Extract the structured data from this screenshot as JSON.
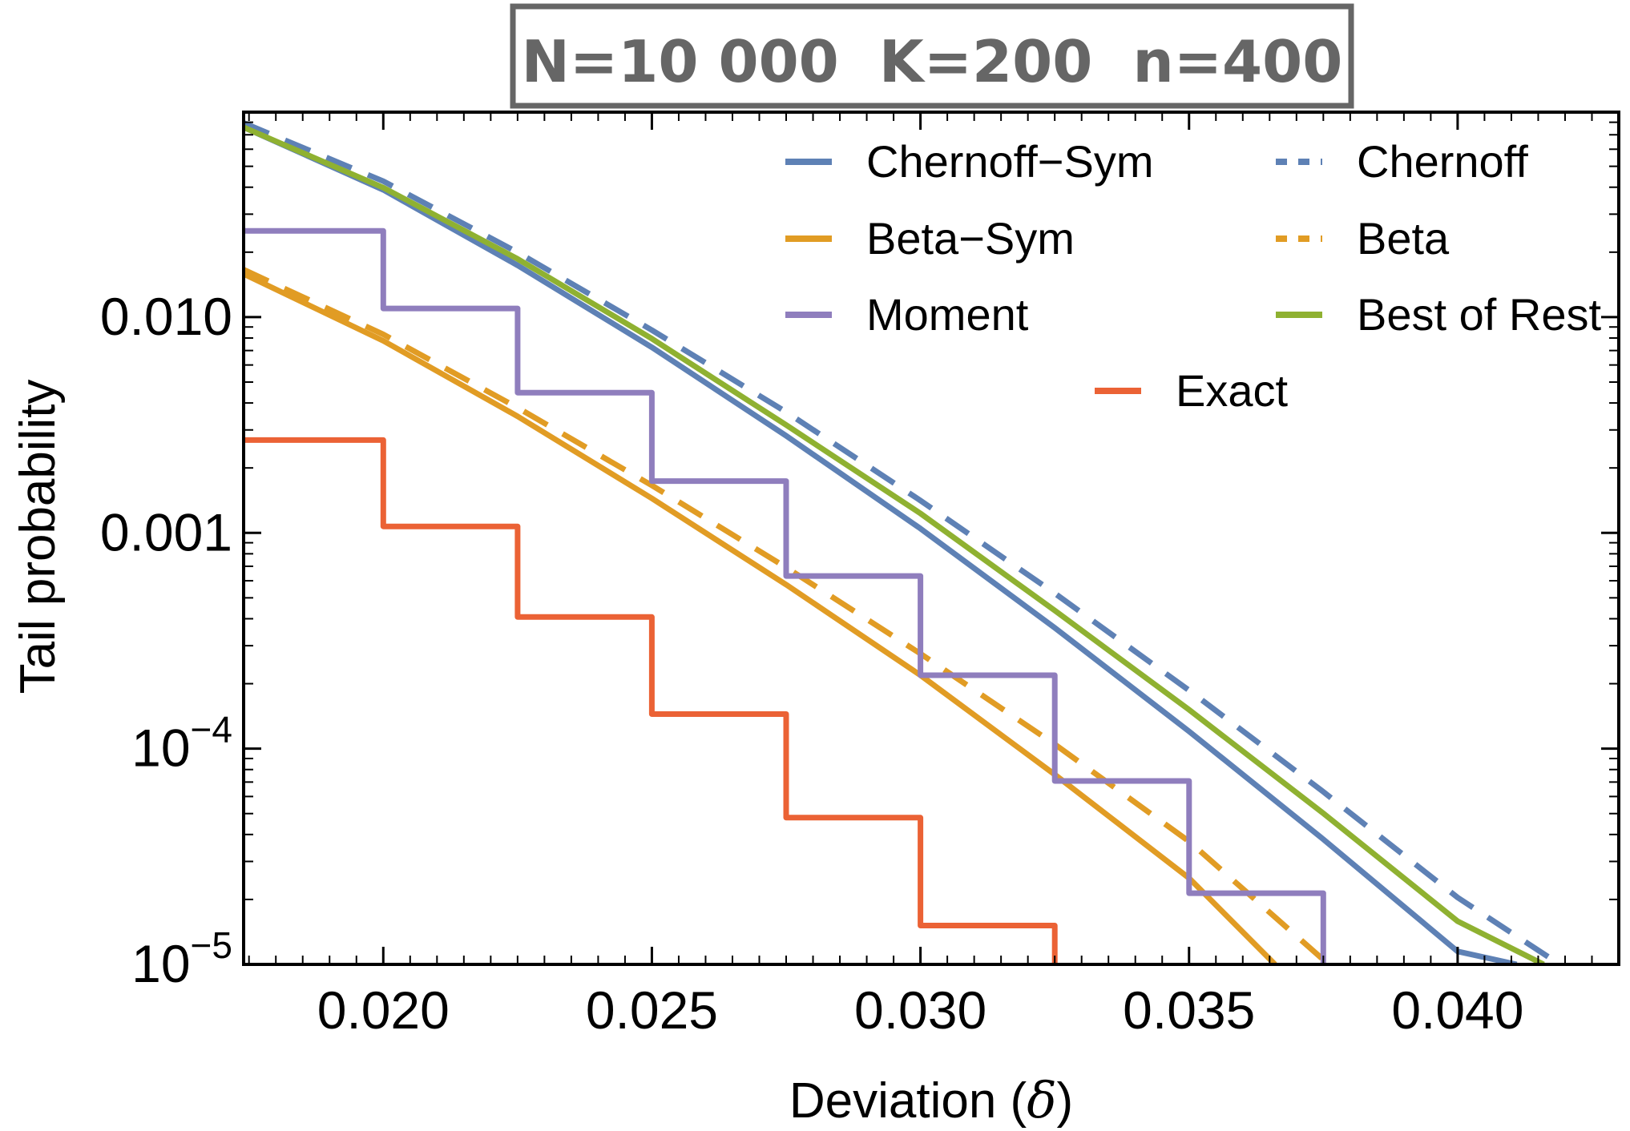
{
  "chart_data": {
    "type": "line",
    "title": "N=10 000  K=200  n=400",
    "xlabel": "Deviation (",
    "xlabel_symbol": "δ",
    "xlabel_close": ")",
    "ylabel": "Tail probability",
    "xlim": [
      0.0174,
      0.043
    ],
    "ylim_log10": [
      -5,
      -1.05
    ],
    "x_ticks": [
      {
        "value": 0.02,
        "label": "0.020"
      },
      {
        "value": 0.025,
        "label": "0.025"
      },
      {
        "value": 0.03,
        "label": "0.030"
      },
      {
        "value": 0.035,
        "label": "0.035"
      },
      {
        "value": 0.04,
        "label": "0.040"
      }
    ],
    "y_ticks": [
      {
        "log10": -2,
        "label": "0.010",
        "base": "",
        "exp": ""
      },
      {
        "log10": -3,
        "label": "0.001",
        "base": "",
        "exp": ""
      },
      {
        "log10": -4,
        "label": "",
        "base": "10",
        "exp": "−4"
      },
      {
        "log10": -5,
        "label": "",
        "base": "10",
        "exp": "−5"
      }
    ],
    "series": [
      {
        "name": "Chernoff−Sym",
        "style": "solid",
        "color": "#5E81B5",
        "kind": "line",
        "x": [
          0.0174,
          0.02,
          0.0225,
          0.025,
          0.0275,
          0.03,
          0.0325,
          0.035,
          0.0375,
          0.04,
          0.0411
        ],
        "log10y": [
          -1.12,
          -1.41,
          -1.76,
          -2.14,
          -2.55,
          -2.98,
          -3.44,
          -3.92,
          -4.42,
          -4.94,
          -5.0
        ]
      },
      {
        "name": "Chernoff",
        "style": "dashed",
        "color": "#5E81B5",
        "kind": "line",
        "x": [
          0.0174,
          0.02,
          0.0225,
          0.025,
          0.0275,
          0.03,
          0.0325,
          0.035,
          0.0375,
          0.04,
          0.0419
        ],
        "log10y": [
          -1.1,
          -1.37,
          -1.7,
          -2.06,
          -2.44,
          -2.85,
          -3.28,
          -3.73,
          -4.2,
          -4.69,
          -5.0
        ]
      },
      {
        "name": "Beta−Sym",
        "style": "solid",
        "color": "#E19C24",
        "kind": "line",
        "x": [
          0.0174,
          0.02,
          0.0225,
          0.025,
          0.0275,
          0.03,
          0.0325,
          0.035,
          0.0366
        ],
        "log10y": [
          -1.8,
          -2.11,
          -2.46,
          -2.84,
          -3.24,
          -3.66,
          -4.12,
          -4.6,
          -5.0
        ]
      },
      {
        "name": "Beta",
        "style": "dashed",
        "color": "#E19C24",
        "kind": "line",
        "x": [
          0.0174,
          0.02,
          0.0225,
          0.025,
          0.0275,
          0.03,
          0.0325,
          0.035,
          0.0376
        ],
        "log10y": [
          -1.78,
          -2.08,
          -2.42,
          -2.78,
          -3.16,
          -3.56,
          -3.98,
          -4.43,
          -5.0
        ]
      },
      {
        "name": "Moment",
        "style": "solid",
        "color": "#8F7EBD",
        "kind": "step",
        "x": [
          0.0174,
          0.02,
          0.0225,
          0.025,
          0.0275,
          0.03,
          0.0325,
          0.035,
          0.0375
        ],
        "log10y": [
          -1.6,
          -1.96,
          -2.35,
          -2.76,
          -3.2,
          -3.66,
          -4.15,
          -4.67,
          -5.0
        ]
      },
      {
        "name": "Best of Rest",
        "style": "solid",
        "color": "#8FB131",
        "kind": "line",
        "x": [
          0.0174,
          0.02,
          0.0225,
          0.025,
          0.0275,
          0.03,
          0.0325,
          0.035,
          0.0375,
          0.04,
          0.0416
        ],
        "log10y": [
          -1.12,
          -1.4,
          -1.73,
          -2.1,
          -2.5,
          -2.91,
          -3.36,
          -3.82,
          -4.3,
          -4.8,
          -5.0
        ]
      },
      {
        "name": "Exact",
        "style": "solid",
        "color": "#EB6235",
        "kind": "step",
        "x": [
          0.0174,
          0.02,
          0.0225,
          0.025,
          0.0275,
          0.03,
          0.0325
        ],
        "log10y": [
          -2.57,
          -2.97,
          -3.39,
          -3.84,
          -4.32,
          -4.82,
          -5.0
        ]
      }
    ],
    "legend": {
      "placement": "top-right",
      "columns": 2
    }
  }
}
